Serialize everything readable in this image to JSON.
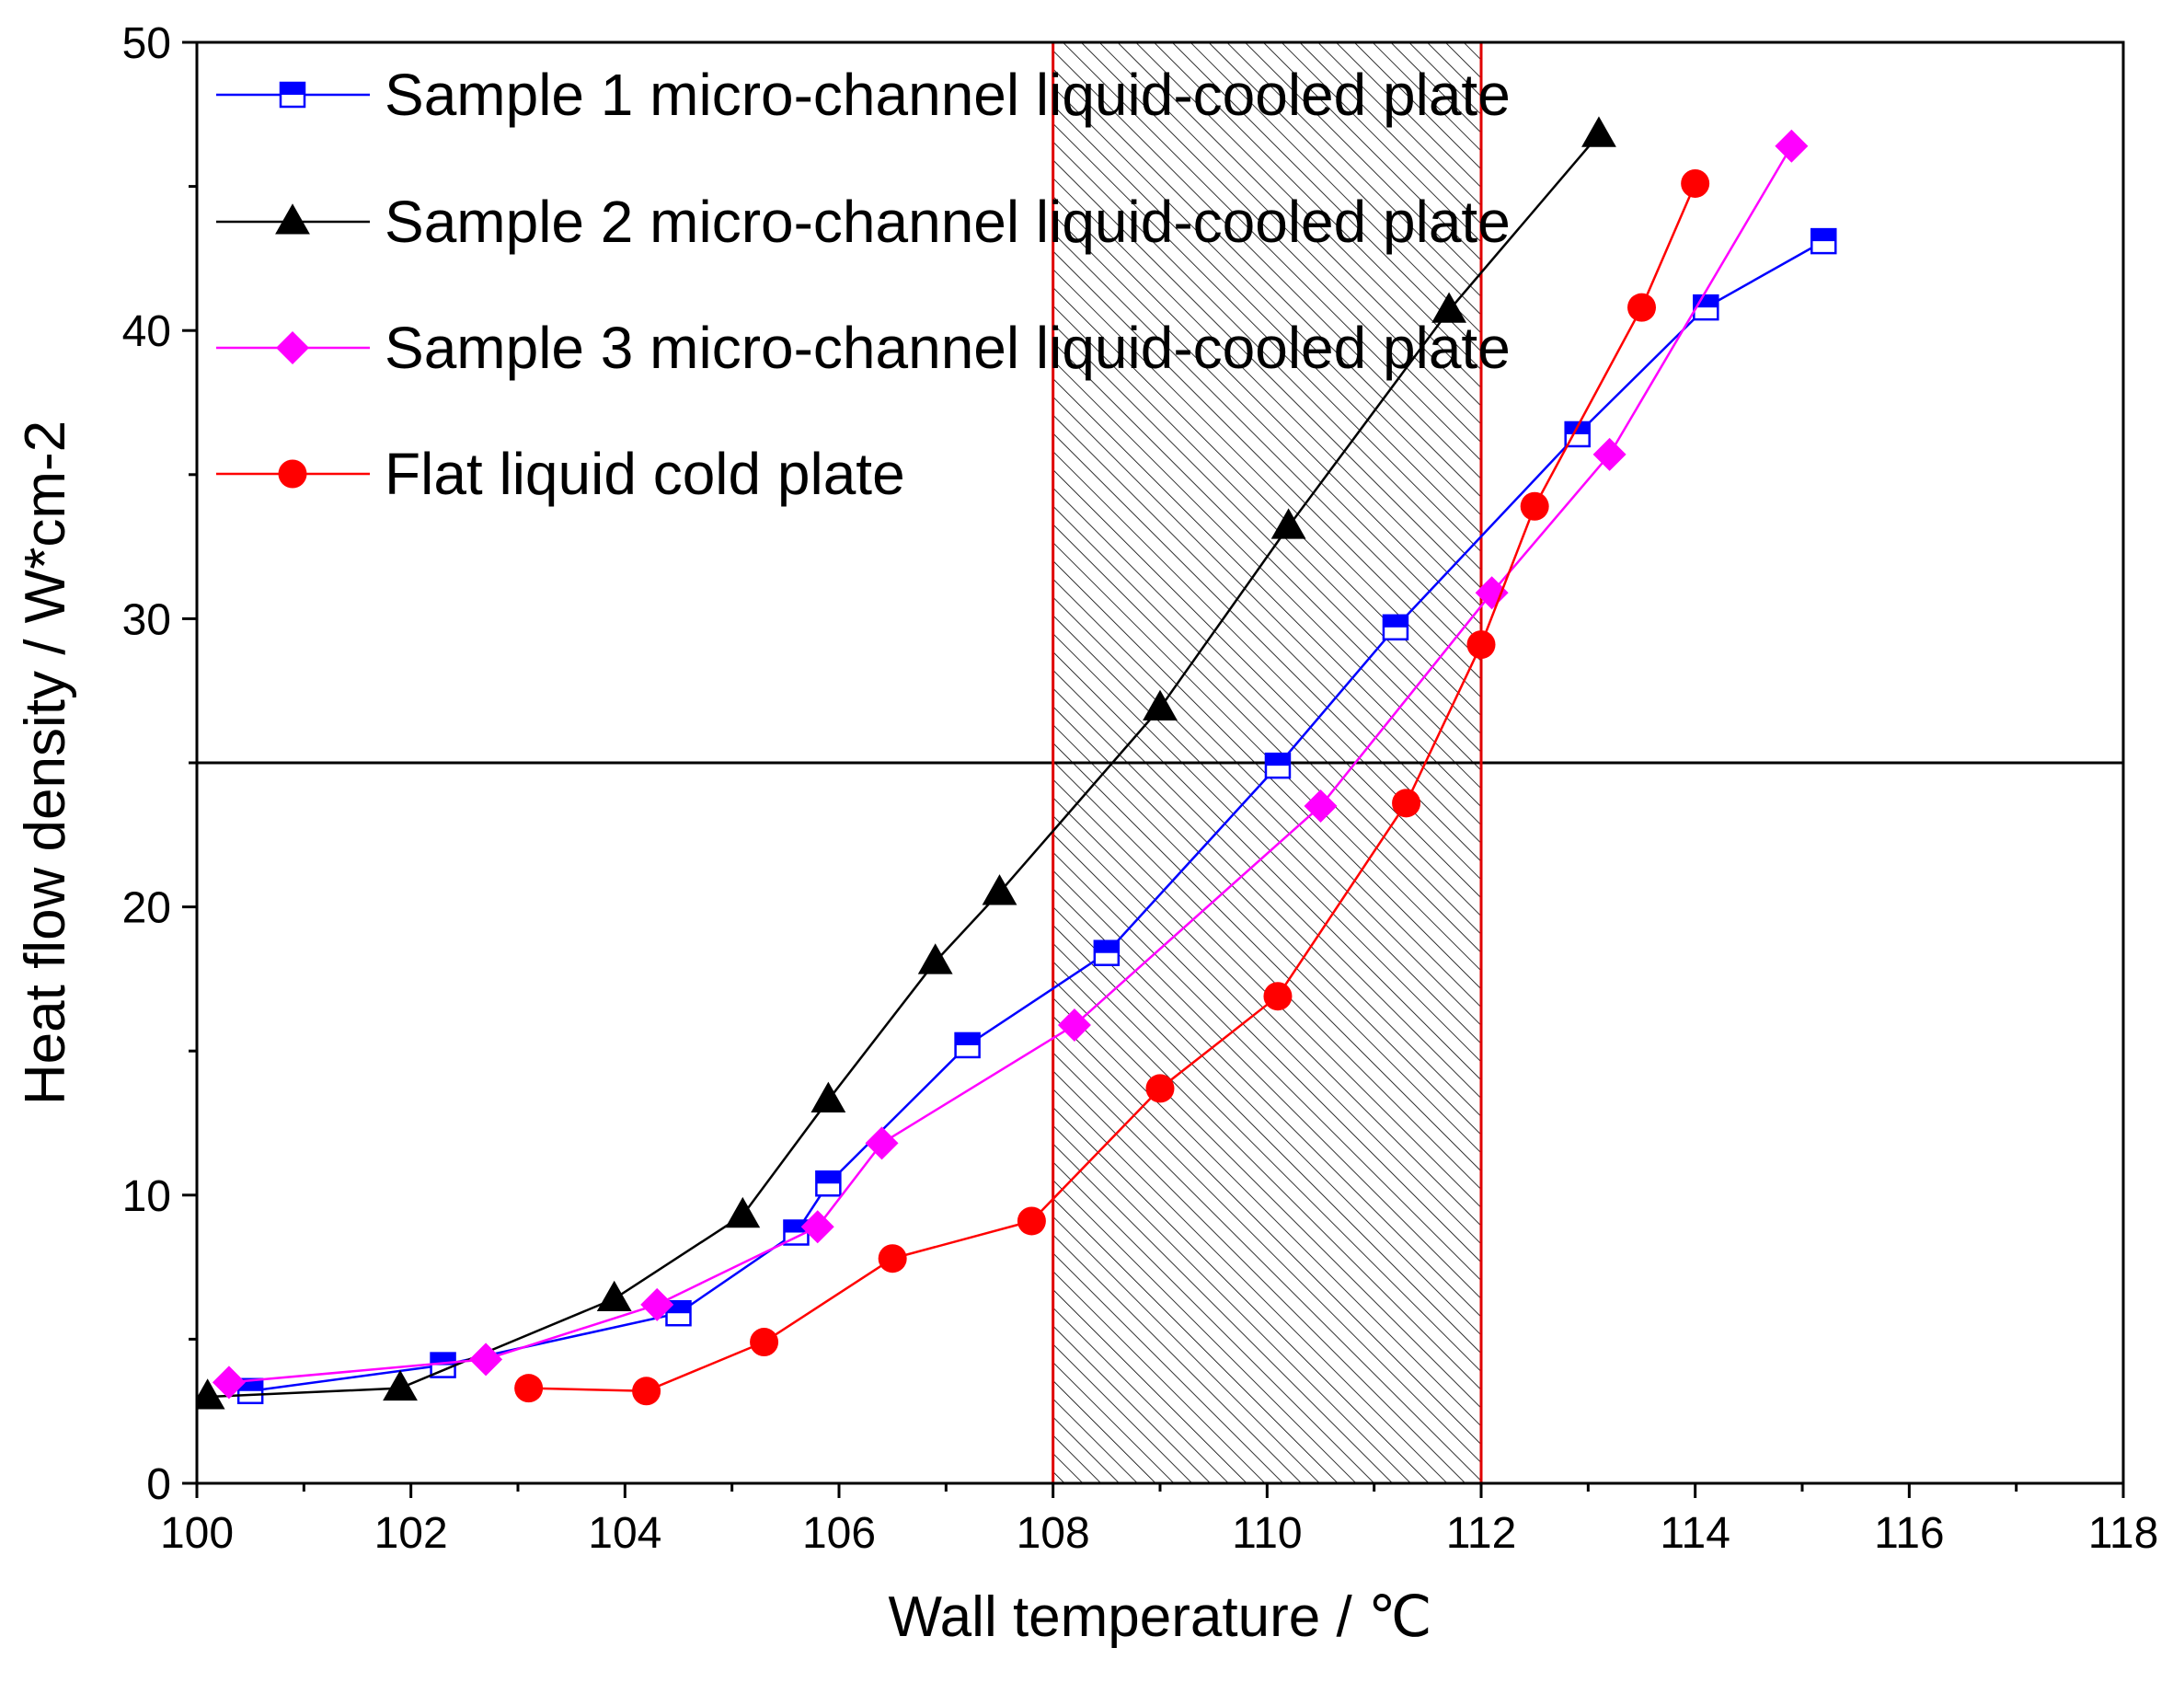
{
  "chart_data": {
    "type": "line",
    "title": "",
    "xlabel": "Wall temperature / ℃",
    "ylabel": "Heat flow density / W*cm-2",
    "xlim": [
      100,
      118
    ],
    "ylim": [
      0,
      50
    ],
    "x_ticks": [
      100,
      102,
      104,
      106,
      108,
      110,
      112,
      114,
      116,
      118
    ],
    "y_ticks": [
      0,
      10,
      20,
      30,
      40,
      50
    ],
    "x_tick_labels": [
      "100",
      "102",
      "104",
      "106",
      "108",
      "110",
      "112",
      "114",
      "116",
      "118"
    ],
    "y_tick_labels": [
      "0",
      "10",
      "20",
      "30",
      "40",
      "50"
    ],
    "grid": false,
    "legend_position": "top-left",
    "reference_lines": {
      "horizontal_y": 25,
      "vertical_x": [
        108,
        112
      ],
      "hatched_region_x": [
        108,
        112
      ]
    },
    "series": [
      {
        "name": "Sample 1 micro-channel liquid-cooled plate",
        "marker": "square-half-filled",
        "color": "#0000ff",
        "x": [
          100.5,
          102.3,
          104.5,
          105.6,
          105.9,
          107.2,
          108.5,
          110.1,
          111.2,
          112.9,
          114.1,
          115.2
        ],
        "y": [
          3.2,
          4.1,
          5.9,
          8.7,
          10.4,
          15.2,
          18.4,
          24.9,
          29.7,
          36.4,
          40.8,
          43.1
        ]
      },
      {
        "name": "Sample 2 micro-channel liquid-cooled plate",
        "marker": "triangle",
        "color": "#000000",
        "x": [
          100.1,
          101.9,
          103.9,
          105.1,
          105.9,
          106.9,
          107.5,
          109.0,
          110.2,
          111.7,
          113.1
        ],
        "y": [
          3.0,
          3.3,
          6.4,
          9.3,
          13.3,
          18.1,
          20.5,
          26.9,
          33.2,
          40.7,
          46.8
        ]
      },
      {
        "name": "Sample 3 micro-channel liquid-cooled plate",
        "marker": "diamond",
        "color": "#ff00ff",
        "x": [
          100.3,
          102.7,
          104.3,
          105.8,
          106.4,
          108.2,
          110.5,
          112.1,
          113.2,
          114.9
        ],
        "y": [
          3.5,
          4.3,
          6.2,
          8.9,
          11.8,
          15.9,
          23.5,
          30.9,
          35.7,
          46.4
        ]
      },
      {
        "name": "Flat liquid cold plate",
        "marker": "circle",
        "color": "#ff0000",
        "x": [
          103.1,
          104.2,
          105.3,
          106.5,
          107.8,
          109.0,
          110.1,
          111.3,
          112.0,
          112.5,
          113.5,
          114.0
        ],
        "y": [
          3.3,
          3.2,
          4.9,
          7.8,
          9.1,
          13.7,
          16.9,
          23.6,
          29.1,
          33.9,
          40.8,
          45.1
        ]
      }
    ]
  }
}
